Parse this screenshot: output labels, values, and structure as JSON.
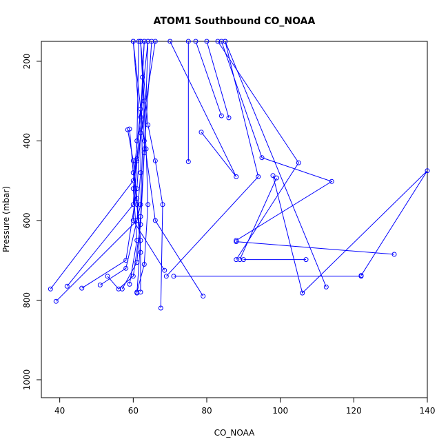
{
  "chart_data": {
    "type": "scatter",
    "title": "ATOM1 Southbound CO_NOAA",
    "xlabel": "CO_NOAA",
    "ylabel": "Pressure (mbar)",
    "xlim": [
      35,
      140
    ],
    "ylim": [
      1045,
      150
    ],
    "y_reversed": true,
    "x_ticks": [
      40,
      60,
      80,
      100,
      120,
      140
    ],
    "y_ticks": [
      200,
      400,
      600,
      800,
      1000
    ],
    "grid": false,
    "legend": "none",
    "line_color": "#0000ff",
    "marker": "open-circle",
    "series": [
      {
        "values": [
          [
            63,
            150
          ],
          [
            62,
            340
          ],
          [
            61,
            445
          ],
          [
            60,
            520
          ],
          [
            61,
            650
          ],
          [
            59,
            760
          ]
        ]
      },
      {
        "values": [
          [
            37.5,
            772
          ],
          [
            60,
            500
          ],
          [
            62,
            320
          ],
          [
            64,
            150
          ]
        ]
      },
      {
        "values": [
          [
            39,
            803
          ],
          [
            61,
            600
          ],
          [
            62,
            480
          ],
          [
            62.5,
            240
          ],
          [
            63,
            150
          ]
        ]
      },
      {
        "values": [
          [
            42,
            765
          ],
          [
            60,
            560
          ],
          [
            61,
            400
          ],
          [
            61.5,
            150
          ]
        ]
      },
      {
        "values": [
          [
            46,
            770
          ],
          [
            58,
            700
          ],
          [
            61,
            520
          ],
          [
            62,
            380
          ],
          [
            60,
            150
          ]
        ]
      },
      {
        "values": [
          [
            51,
            762
          ],
          [
            58,
            720
          ],
          [
            62,
            560
          ],
          [
            63,
            300
          ],
          [
            62,
            150
          ]
        ]
      },
      {
        "values": [
          [
            53,
            740
          ],
          [
            56,
            772
          ],
          [
            60,
            740
          ],
          [
            62,
            610
          ],
          [
            63,
            430
          ],
          [
            64,
            150
          ]
        ]
      },
      {
        "values": [
          [
            57,
            772
          ],
          [
            61,
            705
          ],
          [
            62,
            590
          ],
          [
            63,
            420
          ],
          [
            65,
            150
          ]
        ]
      },
      {
        "values": [
          [
            58.5,
            372
          ],
          [
            60,
            450
          ],
          [
            61,
            545
          ],
          [
            62,
            650
          ],
          [
            61,
            782
          ]
        ]
      },
      {
        "values": [
          [
            59,
            370
          ],
          [
            60,
            480
          ],
          [
            61,
            560
          ],
          [
            62,
            680
          ],
          [
            62,
            780
          ]
        ]
      },
      {
        "values": [
          [
            61,
            780
          ],
          [
            63,
            710
          ],
          [
            64,
            560
          ],
          [
            63.5,
            420
          ],
          [
            62,
            150
          ]
        ]
      },
      {
        "values": [
          [
            67.5,
            820
          ],
          [
            68,
            560
          ],
          [
            66,
            450
          ],
          [
            64,
            360
          ],
          [
            62,
            150
          ]
        ]
      },
      {
        "values": [
          [
            69,
            740
          ],
          [
            94,
            490
          ],
          [
            85,
            150
          ]
        ]
      },
      {
        "values": [
          [
            68.5,
            725
          ],
          [
            60,
            600
          ],
          [
            61,
            450
          ],
          [
            66,
            150
          ]
        ]
      },
      {
        "values": [
          [
            71,
            740
          ],
          [
            122,
            740
          ]
        ]
      },
      {
        "values": [
          [
            75,
            452
          ],
          [
            75,
            150
          ]
        ]
      },
      {
        "values": [
          [
            79,
            790
          ],
          [
            66,
            600
          ],
          [
            63,
            400
          ],
          [
            60,
            150
          ]
        ]
      },
      {
        "values": [
          [
            78.5,
            378
          ],
          [
            88,
            490
          ],
          [
            70,
            150
          ]
        ]
      },
      {
        "values": [
          [
            84,
            337
          ],
          [
            77,
            150
          ]
        ]
      },
      {
        "values": [
          [
            86,
            342
          ],
          [
            80,
            150
          ]
        ]
      },
      {
        "values": [
          [
            88,
            650
          ],
          [
            114,
            502
          ],
          [
            95,
            442
          ],
          [
            84,
            150
          ]
        ]
      },
      {
        "values": [
          [
            88,
            698
          ],
          [
            105,
            455
          ],
          [
            83,
            150
          ]
        ]
      },
      {
        "values": [
          [
            90,
            698
          ],
          [
            107,
            698
          ]
        ]
      },
      {
        "values": [
          [
            88,
            653
          ],
          [
            131,
            685
          ]
        ]
      },
      {
        "values": [
          [
            98,
            487
          ],
          [
            106,
            782
          ],
          [
            140,
            475
          ],
          [
            122,
            738
          ]
        ]
      },
      {
        "values": [
          [
            99,
            493
          ],
          [
            89,
            698
          ]
        ]
      },
      {
        "values": [
          [
            112.5,
            767
          ],
          [
            85,
            150
          ]
        ]
      }
    ]
  }
}
